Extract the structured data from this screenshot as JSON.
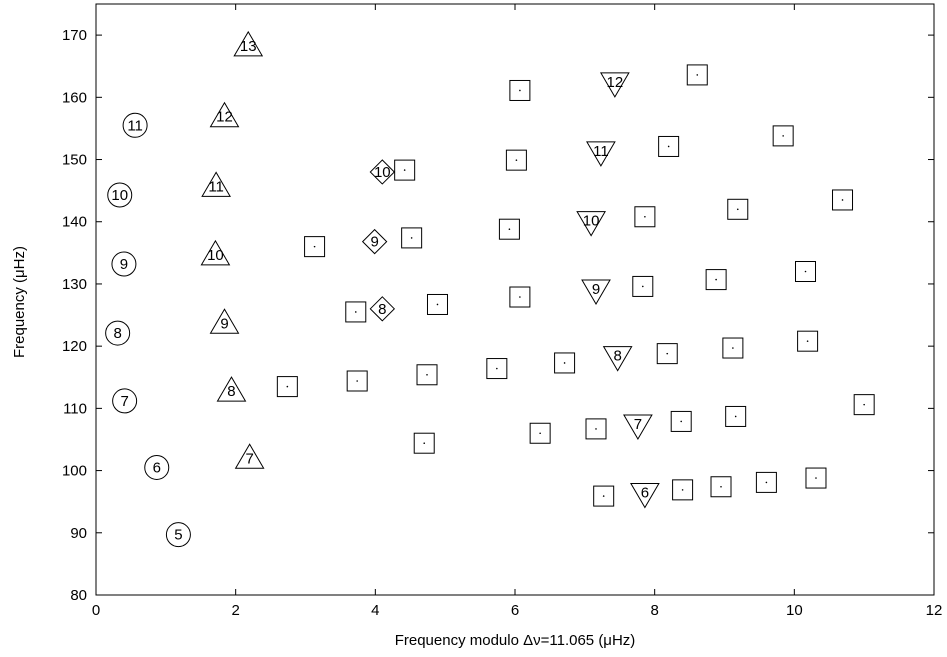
{
  "chart_data": {
    "type": "scatter",
    "title": "",
    "xlabel": "Frequency modulo Δν=11.065 (μHz)",
    "ylabel": "Frequency (μHz)",
    "xlim": [
      0,
      12
    ],
    "ylim": [
      80,
      175
    ],
    "xticks": [
      0,
      2,
      4,
      6,
      8,
      10,
      12
    ],
    "yticks": [
      80,
      90,
      100,
      110,
      120,
      130,
      140,
      150,
      160,
      170
    ],
    "grid": false,
    "series": [
      {
        "marker": "circle",
        "points": [
          {
            "x": 1.18,
            "y": 89.7,
            "label": "5"
          },
          {
            "x": 0.87,
            "y": 100.5,
            "label": "6"
          },
          {
            "x": 0.41,
            "y": 111.2,
            "label": "7"
          },
          {
            "x": 0.31,
            "y": 122.1,
            "label": "8"
          },
          {
            "x": 0.4,
            "y": 133.2,
            "label": "9"
          },
          {
            "x": 0.34,
            "y": 144.3,
            "label": "10"
          },
          {
            "x": 0.56,
            "y": 155.5,
            "label": "11"
          }
        ]
      },
      {
        "marker": "triangle-up",
        "points": [
          {
            "x": 2.2,
            "y": 102.3,
            "label": "7"
          },
          {
            "x": 1.94,
            "y": 113.1,
            "label": "8"
          },
          {
            "x": 1.84,
            "y": 124.0,
            "label": "9"
          },
          {
            "x": 1.71,
            "y": 135.0,
            "label": "10"
          },
          {
            "x": 1.72,
            "y": 146.0,
            "label": "11"
          },
          {
            "x": 1.84,
            "y": 157.2,
            "label": "12"
          },
          {
            "x": 2.18,
            "y": 168.6,
            "label": "13"
          }
        ]
      },
      {
        "marker": "diamond",
        "points": [
          {
            "x": 4.1,
            "y": 126.0,
            "label": "8"
          },
          {
            "x": 3.99,
            "y": 136.8,
            "label": "9"
          },
          {
            "x": 4.1,
            "y": 148.0,
            "label": "10"
          }
        ]
      },
      {
        "marker": "triangle-down",
        "points": [
          {
            "x": 7.86,
            "y": 96.0,
            "label": "6"
          },
          {
            "x": 7.76,
            "y": 107.0,
            "label": "7"
          },
          {
            "x": 7.47,
            "y": 118.0,
            "label": "8"
          },
          {
            "x": 7.16,
            "y": 128.7,
            "label": "9"
          },
          {
            "x": 7.09,
            "y": 139.7,
            "label": "10"
          },
          {
            "x": 7.23,
            "y": 150.9,
            "label": "11"
          },
          {
            "x": 7.43,
            "y": 162.0,
            "label": "12"
          }
        ]
      },
      {
        "marker": "square",
        "points": [
          {
            "x": 7.27,
            "y": 95.9
          },
          {
            "x": 8.4,
            "y": 96.9
          },
          {
            "x": 8.95,
            "y": 97.4
          },
          {
            "x": 9.6,
            "y": 98.1
          },
          {
            "x": 10.31,
            "y": 98.8
          },
          {
            "x": 4.7,
            "y": 104.4
          },
          {
            "x": 6.36,
            "y": 106.0
          },
          {
            "x": 7.16,
            "y": 106.7
          },
          {
            "x": 8.38,
            "y": 107.9
          },
          {
            "x": 9.16,
            "y": 108.7
          },
          {
            "x": 11.0,
            "y": 110.6
          },
          {
            "x": 2.74,
            "y": 113.5
          },
          {
            "x": 3.74,
            "y": 114.4
          },
          {
            "x": 4.74,
            "y": 115.4
          },
          {
            "x": 5.74,
            "y": 116.4
          },
          {
            "x": 6.71,
            "y": 117.3
          },
          {
            "x": 8.18,
            "y": 118.8
          },
          {
            "x": 9.12,
            "y": 119.7
          },
          {
            "x": 10.19,
            "y": 120.8
          },
          {
            "x": 3.72,
            "y": 125.5
          },
          {
            "x": 4.89,
            "y": 126.7
          },
          {
            "x": 6.07,
            "y": 127.9
          },
          {
            "x": 7.83,
            "y": 129.6
          },
          {
            "x": 8.88,
            "y": 130.7
          },
          {
            "x": 10.16,
            "y": 132.0
          },
          {
            "x": 3.13,
            "y": 136.0
          },
          {
            "x": 4.52,
            "y": 137.4
          },
          {
            "x": 5.92,
            "y": 138.8
          },
          {
            "x": 7.86,
            "y": 140.8
          },
          {
            "x": 9.19,
            "y": 142.0
          },
          {
            "x": 10.69,
            "y": 143.5
          },
          {
            "x": 4.42,
            "y": 148.3
          },
          {
            "x": 6.02,
            "y": 149.9
          },
          {
            "x": 8.2,
            "y": 152.1
          },
          {
            "x": 9.84,
            "y": 153.8
          },
          {
            "x": 6.07,
            "y": 161.1
          },
          {
            "x": 8.61,
            "y": 163.6
          }
        ]
      }
    ]
  }
}
